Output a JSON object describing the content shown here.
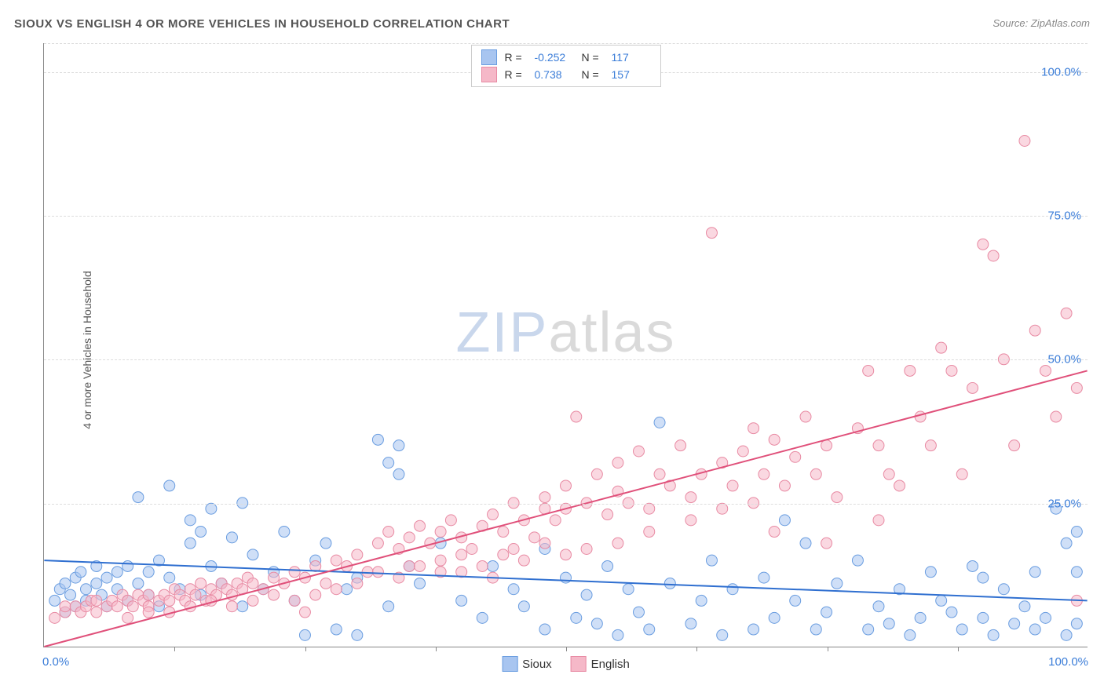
{
  "title": "SIOUX VS ENGLISH 4 OR MORE VEHICLES IN HOUSEHOLD CORRELATION CHART",
  "source": "Source: ZipAtlas.com",
  "ylabel": "4 or more Vehicles in Household",
  "watermark": {
    "part1": "ZIP",
    "part2": "atlas"
  },
  "chart": {
    "type": "scatter",
    "xlim": [
      0,
      100
    ],
    "ylim": [
      0,
      105
    ],
    "x_ticks": [
      0,
      100
    ],
    "x_minor_ticks": [
      12.5,
      25,
      37.5,
      50,
      62.5,
      75,
      87.5
    ],
    "y_gridlines": [
      25,
      50,
      75,
      100
    ],
    "y_tick_labels": {
      "0": "0.0%",
      "25": "25.0%",
      "50": "50.0%",
      "75": "75.0%",
      "100": "100.0%"
    },
    "x_tick_labels": {
      "0": "0.0%",
      "100": "100.0%"
    },
    "background_color": "#ffffff",
    "grid_color": "#dddddd",
    "axis_color": "#888888",
    "label_color": "#3b7dd8",
    "marker_radius": 7,
    "marker_opacity": 0.55,
    "line_width": 2,
    "series": [
      {
        "name": "Sioux",
        "color_fill": "#a8c5f0",
        "color_stroke": "#6a9de0",
        "line_color": "#2f6fd0",
        "R": "-0.252",
        "N": "117",
        "trend": {
          "x1": 0,
          "y1": 15,
          "x2": 100,
          "y2": 8
        },
        "points": [
          [
            1,
            8
          ],
          [
            1.5,
            10
          ],
          [
            2,
            6
          ],
          [
            2,
            11
          ],
          [
            2.5,
            9
          ],
          [
            3,
            12
          ],
          [
            3,
            7
          ],
          [
            3.5,
            13
          ],
          [
            4,
            10
          ],
          [
            4,
            8
          ],
          [
            5,
            11
          ],
          [
            5,
            14
          ],
          [
            5.5,
            9
          ],
          [
            6,
            12
          ],
          [
            6,
            7
          ],
          [
            7,
            13
          ],
          [
            7,
            10
          ],
          [
            8,
            8
          ],
          [
            8,
            14
          ],
          [
            9,
            11
          ],
          [
            9,
            26
          ],
          [
            10,
            9
          ],
          [
            10,
            13
          ],
          [
            11,
            7
          ],
          [
            11,
            15
          ],
          [
            12,
            12
          ],
          [
            12,
            28
          ],
          [
            13,
            10
          ],
          [
            14,
            18
          ],
          [
            14,
            22
          ],
          [
            15,
            20
          ],
          [
            15,
            9
          ],
          [
            16,
            14
          ],
          [
            16,
            24
          ],
          [
            17,
            11
          ],
          [
            18,
            19
          ],
          [
            19,
            7
          ],
          [
            19,
            25
          ],
          [
            20,
            16
          ],
          [
            21,
            10
          ],
          [
            22,
            13
          ],
          [
            23,
            20
          ],
          [
            24,
            8
          ],
          [
            25,
            2
          ],
          [
            26,
            15
          ],
          [
            27,
            18
          ],
          [
            28,
            3
          ],
          [
            29,
            10
          ],
          [
            30,
            12
          ],
          [
            30,
            2
          ],
          [
            32,
            36
          ],
          [
            33,
            32
          ],
          [
            33,
            7
          ],
          [
            34,
            35
          ],
          [
            34,
            30
          ],
          [
            35,
            14
          ],
          [
            36,
            11
          ],
          [
            38,
            18
          ],
          [
            40,
            8
          ],
          [
            42,
            5
          ],
          [
            43,
            14
          ],
          [
            45,
            10
          ],
          [
            46,
            7
          ],
          [
            48,
            17
          ],
          [
            48,
            3
          ],
          [
            50,
            12
          ],
          [
            51,
            5
          ],
          [
            52,
            9
          ],
          [
            53,
            4
          ],
          [
            54,
            14
          ],
          [
            55,
            2
          ],
          [
            56,
            10
          ],
          [
            57,
            6
          ],
          [
            58,
            3
          ],
          [
            59,
            39
          ],
          [
            60,
            11
          ],
          [
            62,
            4
          ],
          [
            63,
            8
          ],
          [
            64,
            15
          ],
          [
            65,
            2
          ],
          [
            66,
            10
          ],
          [
            68,
            3
          ],
          [
            69,
            12
          ],
          [
            70,
            5
          ],
          [
            71,
            22
          ],
          [
            72,
            8
          ],
          [
            73,
            18
          ],
          [
            74,
            3
          ],
          [
            75,
            6
          ],
          [
            76,
            11
          ],
          [
            78,
            15
          ],
          [
            79,
            3
          ],
          [
            80,
            7
          ],
          [
            81,
            4
          ],
          [
            82,
            10
          ],
          [
            83,
            2
          ],
          [
            84,
            5
          ],
          [
            85,
            13
          ],
          [
            86,
            8
          ],
          [
            88,
            3
          ],
          [
            89,
            14
          ],
          [
            90,
            5
          ],
          [
            91,
            2
          ],
          [
            92,
            10
          ],
          [
            93,
            4
          ],
          [
            94,
            7
          ],
          [
            95,
            3
          ],
          [
            96,
            5
          ],
          [
            97,
            24
          ],
          [
            98,
            18
          ],
          [
            98,
            2
          ],
          [
            99,
            20
          ],
          [
            99,
            4
          ],
          [
            99,
            13
          ],
          [
            95,
            13
          ],
          [
            90,
            12
          ],
          [
            87,
            6
          ]
        ]
      },
      {
        "name": "English",
        "color_fill": "#f5b8c8",
        "color_stroke": "#e88aa3",
        "line_color": "#e0507a",
        "R": "0.738",
        "N": "157",
        "trend": {
          "x1": 0,
          "y1": 0,
          "x2": 100,
          "y2": 48
        },
        "points": [
          [
            1,
            5
          ],
          [
            2,
            6
          ],
          [
            2,
            7
          ],
          [
            3,
            7
          ],
          [
            3.5,
            6
          ],
          [
            4,
            7
          ],
          [
            4.5,
            8
          ],
          [
            5,
            6
          ],
          [
            5,
            8
          ],
          [
            6,
            7
          ],
          [
            6.5,
            8
          ],
          [
            7,
            7
          ],
          [
            7.5,
            9
          ],
          [
            8,
            8
          ],
          [
            8.5,
            7
          ],
          [
            9,
            9
          ],
          [
            9.5,
            8
          ],
          [
            10,
            7
          ],
          [
            10,
            9
          ],
          [
            11,
            8
          ],
          [
            11.5,
            9
          ],
          [
            12,
            8
          ],
          [
            12.5,
            10
          ],
          [
            13,
            9
          ],
          [
            13.5,
            8
          ],
          [
            14,
            10
          ],
          [
            14.5,
            9
          ],
          [
            15,
            11
          ],
          [
            15.5,
            8
          ],
          [
            16,
            10
          ],
          [
            16.5,
            9
          ],
          [
            17,
            11
          ],
          [
            17.5,
            10
          ],
          [
            18,
            9
          ],
          [
            18.5,
            11
          ],
          [
            19,
            10
          ],
          [
            19.5,
            12
          ],
          [
            20,
            11
          ],
          [
            21,
            10
          ],
          [
            22,
            12
          ],
          [
            23,
            11
          ],
          [
            24,
            13
          ],
          [
            25,
            12
          ],
          [
            25,
            6
          ],
          [
            26,
            14
          ],
          [
            27,
            11
          ],
          [
            28,
            15
          ],
          [
            29,
            14
          ],
          [
            30,
            16
          ],
          [
            31,
            13
          ],
          [
            32,
            18
          ],
          [
            33,
            20
          ],
          [
            34,
            17
          ],
          [
            35,
            19
          ],
          [
            35,
            14
          ],
          [
            36,
            21
          ],
          [
            37,
            18
          ],
          [
            38,
            20
          ],
          [
            38,
            15
          ],
          [
            39,
            22
          ],
          [
            40,
            19
          ],
          [
            40,
            13
          ],
          [
            41,
            17
          ],
          [
            42,
            21
          ],
          [
            43,
            23
          ],
          [
            43,
            12
          ],
          [
            44,
            20
          ],
          [
            45,
            25
          ],
          [
            45,
            17
          ],
          [
            46,
            22
          ],
          [
            47,
            19
          ],
          [
            48,
            24
          ],
          [
            48,
            26
          ],
          [
            49,
            22
          ],
          [
            50,
            24
          ],
          [
            50,
            28
          ],
          [
            51,
            40
          ],
          [
            52,
            25
          ],
          [
            53,
            30
          ],
          [
            54,
            23
          ],
          [
            55,
            27
          ],
          [
            55,
            32
          ],
          [
            56,
            25
          ],
          [
            57,
            34
          ],
          [
            58,
            24
          ],
          [
            59,
            30
          ],
          [
            60,
            28
          ],
          [
            61,
            35
          ],
          [
            62,
            26
          ],
          [
            63,
            30
          ],
          [
            64,
            72
          ],
          [
            65,
            32
          ],
          [
            66,
            28
          ],
          [
            67,
            34
          ],
          [
            68,
            25
          ],
          [
            69,
            30
          ],
          [
            70,
            36
          ],
          [
            71,
            28
          ],
          [
            72,
            33
          ],
          [
            73,
            40
          ],
          [
            74,
            30
          ],
          [
            75,
            35
          ],
          [
            76,
            26
          ],
          [
            78,
            38
          ],
          [
            79,
            48
          ],
          [
            80,
            35
          ],
          [
            81,
            30
          ],
          [
            82,
            28
          ],
          [
            83,
            48
          ],
          [
            84,
            40
          ],
          [
            85,
            35
          ],
          [
            86,
            52
          ],
          [
            87,
            48
          ],
          [
            88,
            30
          ],
          [
            89,
            45
          ],
          [
            90,
            70
          ],
          [
            91,
            68
          ],
          [
            92,
            50
          ],
          [
            93,
            35
          ],
          [
            94,
            88
          ],
          [
            95,
            55
          ],
          [
            96,
            48
          ],
          [
            97,
            40
          ],
          [
            98,
            58
          ],
          [
            99,
            45
          ],
          [
            99,
            8
          ],
          [
            80,
            22
          ],
          [
            75,
            18
          ],
          [
            70,
            20
          ],
          [
            68,
            38
          ],
          [
            65,
            24
          ],
          [
            62,
            22
          ],
          [
            58,
            20
          ],
          [
            55,
            18
          ],
          [
            52,
            17
          ],
          [
            50,
            16
          ],
          [
            48,
            18
          ],
          [
            46,
            15
          ],
          [
            44,
            16
          ],
          [
            42,
            14
          ],
          [
            40,
            16
          ],
          [
            38,
            13
          ],
          [
            36,
            14
          ],
          [
            34,
            12
          ],
          [
            32,
            13
          ],
          [
            30,
            11
          ],
          [
            28,
            10
          ],
          [
            26,
            9
          ],
          [
            24,
            8
          ],
          [
            22,
            9
          ],
          [
            20,
            8
          ],
          [
            18,
            7
          ],
          [
            16,
            8
          ],
          [
            14,
            7
          ],
          [
            12,
            6
          ],
          [
            10,
            6
          ],
          [
            8,
            5
          ]
        ]
      }
    ]
  },
  "legend_top_labels": {
    "R": "R =",
    "N": "N ="
  },
  "legend_bottom": [
    {
      "name": "Sioux",
      "fill": "#a8c5f0",
      "stroke": "#6a9de0"
    },
    {
      "name": "English",
      "fill": "#f5b8c8",
      "stroke": "#e88aa3"
    }
  ]
}
